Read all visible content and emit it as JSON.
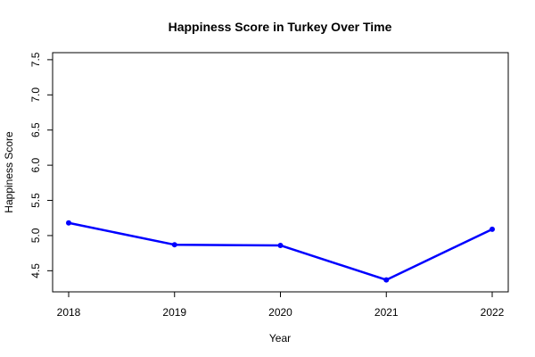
{
  "chart_data": {
    "type": "line",
    "title": "Happiness Score in Turkey Over Time",
    "xlabel": "Year",
    "ylabel": "Happiness Score",
    "x": [
      2018,
      2019,
      2020,
      2021,
      2022
    ],
    "x_ticks": [
      "2018",
      "2019",
      "2020",
      "2021",
      "2022"
    ],
    "y_ticks": [
      "4.5",
      "5.0",
      "5.5",
      "6.0",
      "6.5",
      "7.0",
      "7.5"
    ],
    "ylim": [
      4.2,
      7.6
    ],
    "series": [
      {
        "values": [
          5.18,
          4.87,
          4.86,
          4.37,
          5.09
        ],
        "color": "#0000ff",
        "marker": "filled-circle"
      }
    ],
    "grid": false,
    "legend": "none"
  }
}
